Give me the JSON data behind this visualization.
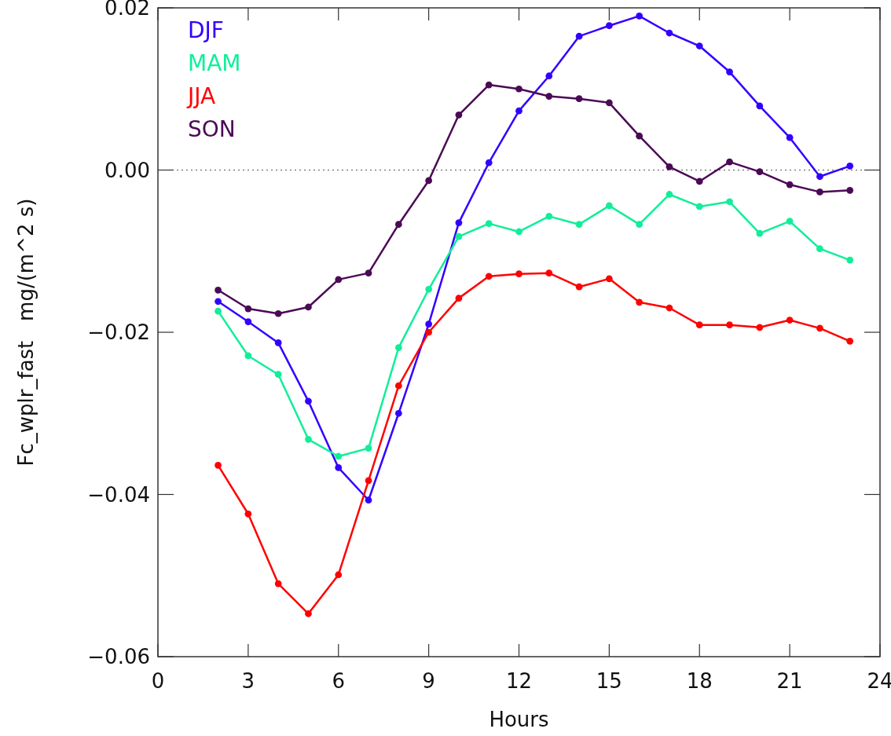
{
  "chart_data": {
    "type": "line",
    "xlabel": "Hours",
    "ylabel": "Fc_wplr_fast   mg/(m^2 s)",
    "x": [
      2,
      3,
      4,
      5,
      6,
      7,
      8,
      9,
      10,
      11,
      12,
      13,
      14,
      15,
      16,
      17,
      18,
      19,
      20,
      21,
      22,
      23
    ],
    "xlim": [
      0,
      24
    ],
    "xticks": [
      0,
      3,
      6,
      9,
      12,
      15,
      18,
      21,
      24
    ],
    "ylim": [
      -0.06,
      0.02
    ],
    "yticks": [
      {
        "value": -0.06,
        "label": "−0.06"
      },
      {
        "value": -0.04,
        "label": "−0.04"
      },
      {
        "value": -0.02,
        "label": "−0.02"
      },
      {
        "value": 0,
        "label": "0.00"
      },
      0.02
    ],
    "grid": false,
    "legend": "top left",
    "marker": "circle",
    "line_style": "solid",
    "ref_lines": [
      {
        "axis": "y",
        "value": 0,
        "line_style": "dotted",
        "color": "#555555"
      }
    ],
    "series": [
      {
        "name": "DJF",
        "color": "#3300ff",
        "values": [
          -0.0162,
          -0.0187,
          -0.0213,
          -0.0285,
          -0.0367,
          -0.0407,
          -0.03,
          -0.019,
          -0.0065,
          0.0009,
          0.0073,
          0.0116,
          0.0165,
          0.0178,
          0.019,
          0.0169,
          0.0153,
          0.0121,
          0.0079,
          0.004,
          -0.0008,
          0.0005
        ]
      },
      {
        "name": "MAM",
        "color": "#11ee99",
        "values": [
          -0.0174,
          -0.0229,
          -0.0252,
          -0.0332,
          -0.0353,
          -0.0343,
          -0.0219,
          -0.0147,
          -0.0082,
          -0.0066,
          -0.0076,
          -0.0057,
          -0.0067,
          -0.0044,
          -0.0067,
          -0.003,
          -0.0045,
          -0.0039,
          -0.0078,
          -0.0063,
          -0.0097,
          -0.0111
        ]
      },
      {
        "name": "JJA",
        "color": "#ff0000",
        "values": [
          -0.0364,
          -0.0424,
          -0.051,
          -0.0547,
          -0.0499,
          -0.0383,
          -0.0266,
          -0.02,
          -0.0158,
          -0.0131,
          -0.0128,
          -0.0127,
          -0.0144,
          -0.0134,
          -0.0163,
          -0.017,
          -0.0191,
          -0.0191,
          -0.0194,
          -0.0185,
          -0.0195,
          -0.0211
        ]
      },
      {
        "name": "SON",
        "color": "#4b0a55",
        "values": [
          -0.0148,
          -0.0171,
          -0.0177,
          -0.0169,
          -0.0135,
          -0.0127,
          -0.0067,
          -0.0013,
          0.0068,
          0.0105,
          0.01,
          0.0091,
          0.0088,
          0.0083,
          0.0042,
          0.0004,
          -0.0014,
          0.001,
          -0.0002,
          -0.0018,
          -0.0027,
          -0.0025
        ]
      }
    ]
  }
}
